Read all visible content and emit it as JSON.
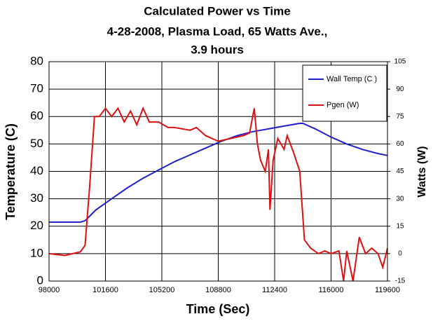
{
  "chart_data": {
    "type": "line",
    "title": [
      "Calculated Power vs Time",
      "4-28-2008,   Plasma Load,  65 Watts Ave.,",
      "3.9 hours"
    ],
    "xlabel": "Time (Sec)",
    "ylabel": "Temperature (C)",
    "y2label": "Watts (W)",
    "xlim": [
      98000,
      119600
    ],
    "xticks": [
      98000,
      101600,
      105200,
      108800,
      112400,
      116000,
      119600
    ],
    "ylim": [
      0,
      80
    ],
    "yticks": [
      0,
      10,
      20,
      30,
      40,
      50,
      60,
      70,
      80
    ],
    "y2lim": [
      -15,
      105
    ],
    "y2ticks": [
      -15,
      0,
      15,
      30,
      45,
      60,
      75,
      90,
      105
    ],
    "grid": true,
    "legend": "upper right",
    "series": [
      {
        "name": "Wall Temp (C )",
        "color": "#1f1fd0",
        "axis": "y",
        "x": [
          98000,
          100000,
          100300,
          101000,
          102000,
          103000,
          104000,
          105000,
          106000,
          107000,
          108000,
          109000,
          110000,
          111000,
          112000,
          113000,
          114000,
          114200,
          115000,
          116000,
          117000,
          118000,
          119000,
          119600
        ],
        "values": [
          21.5,
          21.5,
          22,
          26,
          30,
          34,
          37.5,
          40.5,
          43.5,
          46,
          48.5,
          51,
          53,
          54.5,
          55.5,
          56.5,
          57.5,
          57.5,
          55.5,
          52.5,
          50,
          48,
          46.5,
          45.8
        ]
      },
      {
        "name": "Pgen (W)",
        "color": "#e01010",
        "axis": "y2",
        "x": [
          98000,
          99000,
          100000,
          100300,
          100600,
          100900,
          101200,
          101600,
          102000,
          102400,
          102800,
          103200,
          103600,
          104000,
          104400,
          105000,
          105600,
          106000,
          107000,
          107400,
          108000,
          108800,
          109600,
          110400,
          110800,
          111100,
          111300,
          111500,
          111800,
          112000,
          112100,
          112300,
          112600,
          113000,
          113200,
          113600,
          114000,
          114300,
          114700,
          115200,
          115600,
          116000,
          116500,
          116800,
          117000,
          117400,
          117800,
          118200,
          118600,
          119000,
          119300,
          119600
        ],
        "values": [
          0,
          -1,
          1,
          4.5,
          37.5,
          75,
          75,
          79.5,
          75,
          79.5,
          72,
          78,
          70.5,
          79.5,
          72,
          72,
          69,
          69,
          67.5,
          69,
          64.5,
          61.5,
          63,
          64.5,
          66,
          79.5,
          60,
          51,
          45,
          57,
          24,
          51,
          63,
          57,
          64.5,
          55.5,
          45,
          7.5,
          3,
          0,
          1.5,
          0,
          1.5,
          -15,
          1.5,
          -15,
          9,
          0,
          3,
          0,
          -7.5,
          3
        ]
      }
    ]
  }
}
